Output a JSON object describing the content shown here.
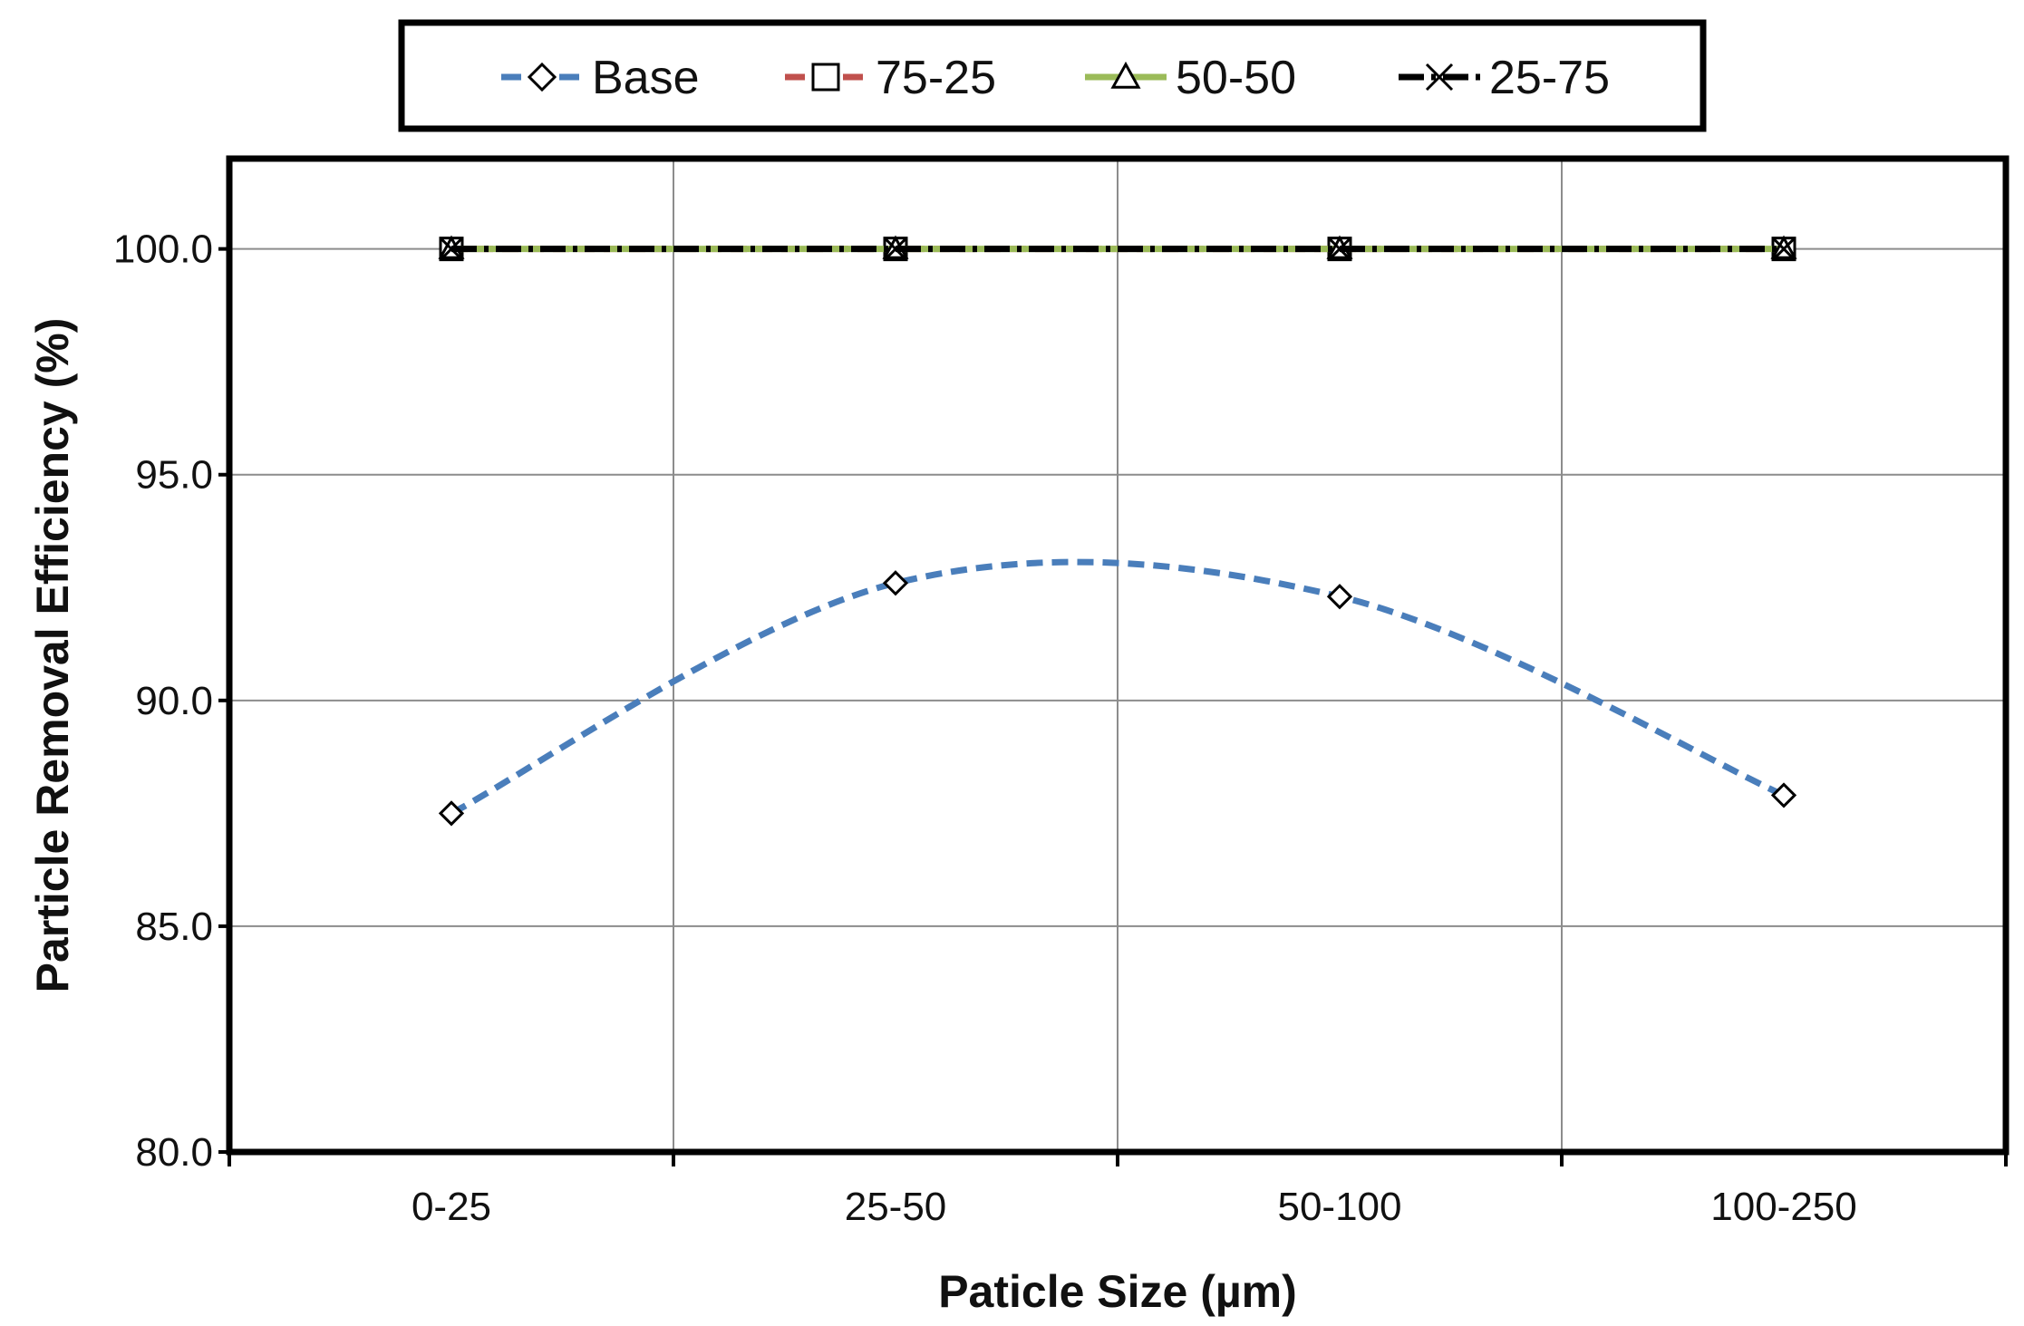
{
  "chart_data": {
    "type": "line",
    "title": "",
    "xlabel": "Paticle Size (µm)",
    "ylabel": "Particle Removal Efficiency (%)",
    "categories": [
      "0-25",
      "25-50",
      "50-100",
      "100-250"
    ],
    "ylim": [
      80,
      100
    ],
    "y_ticks": [
      "80.0",
      "85.0",
      "90.0",
      "95.0",
      "100.0"
    ],
    "ylim_display": [
      80,
      102
    ],
    "grid": true,
    "legend_position": "top",
    "series": [
      {
        "name": "Base",
        "values": [
          87.5,
          92.6,
          92.3,
          87.9
        ],
        "color": "#4a7ebb",
        "marker": "diamond",
        "dash": "dashed",
        "smooth": true
      },
      {
        "name": "75-25",
        "values": [
          100,
          100,
          100,
          100
        ],
        "color": "#c0504d",
        "marker": "square",
        "dash": "dashed"
      },
      {
        "name": "50-50",
        "values": [
          100,
          100,
          100,
          100
        ],
        "color": "#9bbb59",
        "marker": "triangle",
        "dash": "solid"
      },
      {
        "name": "25-75",
        "values": [
          100,
          100,
          100,
          100
        ],
        "color": "#000000",
        "marker": "x",
        "dash": "dashdot"
      }
    ]
  }
}
